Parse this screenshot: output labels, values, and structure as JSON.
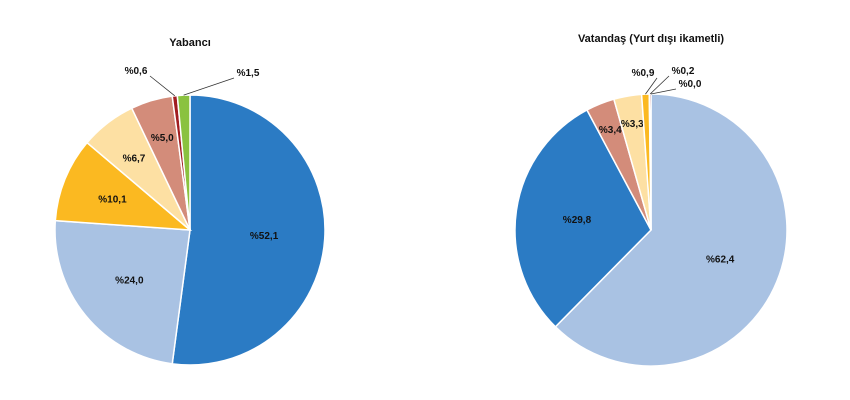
{
  "chart_data": [
    {
      "type": "pie",
      "title": "Yabancı",
      "slices": [
        {
          "label": "%52,1",
          "value": 52.1,
          "color": "#2b7bc4"
        },
        {
          "label": "%24,0",
          "value": 24.0,
          "color": "#a9c2e3"
        },
        {
          "label": "%10,1",
          "value": 10.1,
          "color": "#fbb921"
        },
        {
          "label": "%6,7",
          "value": 6.7,
          "color": "#fde0a3"
        },
        {
          "label": "%5,0",
          "value": 5.0,
          "color": "#d38c7a"
        },
        {
          "label": "%0,6",
          "value": 0.6,
          "color": "#a11d21"
        },
        {
          "label": "%1,5",
          "value": 1.5,
          "color": "#8ac23f"
        }
      ]
    },
    {
      "type": "pie",
      "title": "Vatandaş (Yurt dışı ikametli)",
      "slices": [
        {
          "label": "%62,4",
          "value": 62.4,
          "color": "#a9c2e3"
        },
        {
          "label": "%29,8",
          "value": 29.8,
          "color": "#2b7bc4"
        },
        {
          "label": "%3,4",
          "value": 3.4,
          "color": "#d38c7a"
        },
        {
          "label": "%3,3",
          "value": 3.3,
          "color": "#fde0a3"
        },
        {
          "label": "%0,9",
          "value": 0.9,
          "color": "#fbb921"
        },
        {
          "label": "%0,2",
          "value": 0.2,
          "color": "#a11d21"
        },
        {
          "label": "%0,0",
          "value": 0.0,
          "color": "#8ac23f"
        }
      ]
    }
  ]
}
